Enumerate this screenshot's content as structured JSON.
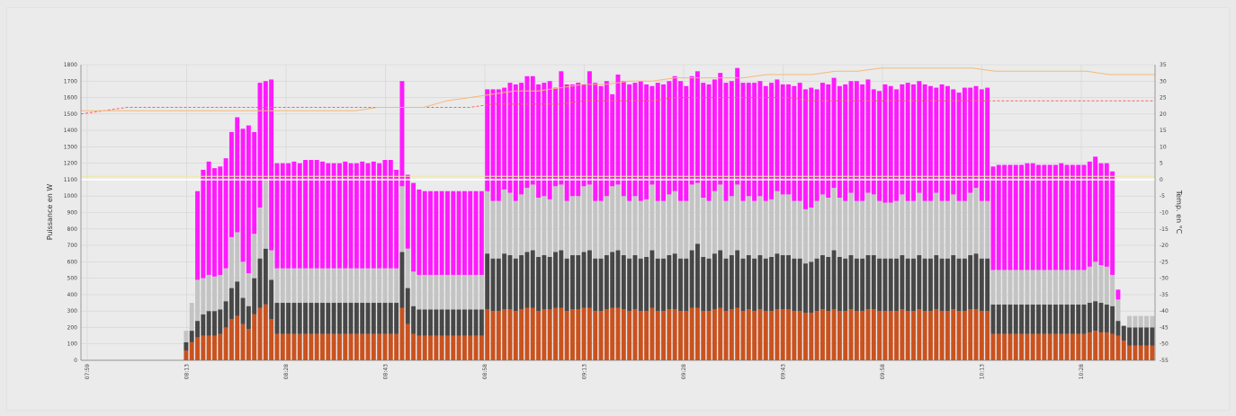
{
  "chart_data": {
    "type": "bar",
    "stacked": true,
    "ylabel": "Puissance en W",
    "y2label": "Temp. en °C",
    "ylim": [
      0,
      1800
    ],
    "y2lim": [
      -55,
      35
    ],
    "grid": true,
    "legend": "none",
    "yticks": [
      "0",
      "100",
      "200",
      "300",
      "400",
      "500",
      "600",
      "700",
      "800",
      "900",
      "1000",
      "1100",
      "1200",
      "1300",
      "1400",
      "1500",
      "1600",
      "1700",
      "1800"
    ],
    "y2ticks": [
      "-55",
      "-50",
      "-45",
      "-40",
      "-35",
      "-30",
      "-25",
      "-20",
      "-15",
      "-10",
      "-5",
      "0",
      "5",
      "10",
      "15",
      "20",
      "25",
      "30",
      "35"
    ],
    "xticks": [
      "07:59",
      "08:13",
      "08:28",
      "08:43",
      "08:58",
      "09:13",
      "09:28",
      "09:43",
      "09:58",
      "10:13",
      "10:28"
    ],
    "n_slots": 189,
    "series": [
      {
        "color": "#c9521f",
        "values": [
          0,
          0,
          0,
          0,
          0,
          0,
          0,
          0,
          0,
          0,
          0,
          0,
          0,
          0,
          0,
          0,
          0,
          0,
          60,
          110,
          140,
          150,
          150,
          150,
          160,
          200,
          250,
          270,
          220,
          190,
          280,
          320,
          340,
          250,
          160,
          160,
          160,
          160,
          160,
          160,
          160,
          160,
          160,
          160,
          160,
          160,
          160,
          160,
          160,
          160,
          160,
          160,
          160,
          160,
          160,
          160,
          320,
          220,
          160,
          150,
          150,
          150,
          150,
          150,
          150,
          150,
          150,
          150,
          150,
          150,
          150,
          310,
          300,
          300,
          310,
          310,
          300,
          310,
          320,
          320,
          300,
          310,
          310,
          320,
          320,
          300,
          310,
          310,
          320,
          320,
          300,
          300,
          310,
          320,
          320,
          310,
          300,
          310,
          300,
          300,
          320,
          300,
          300,
          310,
          310,
          300,
          300,
          320,
          320,
          300,
          300,
          310,
          320,
          300,
          310,
          320,
          300,
          310,
          300,
          310,
          300,
          300,
          310,
          310,
          310,
          300,
          300,
          290,
          290,
          300,
          310,
          300,
          310,
          300,
          300,
          310,
          300,
          300,
          310,
          310,
          300,
          300,
          300,
          300,
          310,
          300,
          300,
          310,
          300,
          300,
          310,
          300,
          300,
          310,
          300,
          300,
          310,
          310,
          300,
          300,
          160,
          160,
          160,
          160,
          160,
          160,
          160,
          160,
          160,
          160,
          160,
          160,
          160,
          160,
          160,
          160,
          160,
          170,
          180,
          170,
          170,
          160,
          150,
          120,
          90,
          90,
          90,
          90,
          90,
          90,
          90,
          90,
          90,
          90,
          90,
          90,
          90
        ]
      },
      {
        "color": "#474747",
        "values": [
          0,
          0,
          0,
          0,
          0,
          0,
          0,
          0,
          0,
          0,
          0,
          0,
          0,
          0,
          0,
          0,
          0,
          0,
          50,
          70,
          100,
          130,
          150,
          150,
          150,
          160,
          190,
          210,
          160,
          140,
          220,
          300,
          340,
          240,
          190,
          190,
          190,
          190,
          190,
          190,
          190,
          190,
          190,
          190,
          190,
          190,
          190,
          190,
          190,
          190,
          190,
          190,
          190,
          190,
          190,
          190,
          340,
          220,
          170,
          160,
          160,
          160,
          160,
          160,
          160,
          160,
          160,
          160,
          160,
          160,
          160,
          340,
          320,
          320,
          340,
          330,
          320,
          330,
          340,
          350,
          330,
          330,
          320,
          340,
          350,
          320,
          330,
          330,
          340,
          350,
          320,
          320,
          330,
          340,
          350,
          330,
          320,
          330,
          320,
          330,
          350,
          320,
          320,
          330,
          340,
          320,
          320,
          350,
          390,
          330,
          320,
          340,
          350,
          320,
          330,
          350,
          320,
          330,
          320,
          330,
          320,
          330,
          340,
          330,
          330,
          320,
          320,
          300,
          310,
          320,
          330,
          330,
          360,
          330,
          320,
          330,
          320,
          320,
          330,
          330,
          320,
          320,
          320,
          320,
          330,
          320,
          320,
          330,
          320,
          320,
          330,
          320,
          320,
          330,
          320,
          320,
          330,
          340,
          320,
          320,
          180,
          180,
          180,
          180,
          180,
          180,
          180,
          180,
          180,
          180,
          180,
          180,
          180,
          180,
          180,
          180,
          180,
          180,
          180,
          180,
          170,
          170,
          90,
          90,
          110,
          110,
          110,
          110,
          110,
          110,
          110,
          100,
          100,
          100,
          100,
          100,
          100
        ]
      },
      {
        "color": "#c4c4c4",
        "values": [
          0,
          0,
          0,
          0,
          0,
          0,
          0,
          0,
          0,
          0,
          0,
          0,
          0,
          0,
          0,
          0,
          0,
          0,
          70,
          170,
          250,
          220,
          220,
          210,
          210,
          200,
          310,
          300,
          220,
          200,
          270,
          310,
          420,
          180,
          210,
          210,
          210,
          210,
          210,
          210,
          210,
          210,
          210,
          210,
          210,
          210,
          210,
          210,
          210,
          210,
          210,
          210,
          210,
          210,
          210,
          210,
          400,
          240,
          210,
          210,
          210,
          210,
          210,
          210,
          210,
          210,
          210,
          210,
          210,
          210,
          210,
          380,
          350,
          350,
          390,
          380,
          350,
          370,
          390,
          400,
          360,
          360,
          350,
          400,
          400,
          350,
          360,
          360,
          400,
          400,
          350,
          350,
          360,
          400,
          400,
          360,
          350,
          360,
          350,
          350,
          400,
          350,
          350,
          370,
          380,
          350,
          350,
          400,
          370,
          360,
          350,
          380,
          400,
          350,
          360,
          400,
          350,
          360,
          350,
          360,
          350,
          350,
          380,
          370,
          370,
          350,
          350,
          330,
          330,
          350,
          370,
          360,
          380,
          360,
          350,
          380,
          350,
          350,
          380,
          370,
          350,
          340,
          340,
          350,
          370,
          350,
          350,
          380,
          350,
          350,
          380,
          350,
          350,
          370,
          350,
          350,
          380,
          400,
          350,
          350,
          210,
          210,
          210,
          210,
          210,
          210,
          210,
          210,
          210,
          210,
          210,
          210,
          210,
          210,
          210,
          210,
          210,
          220,
          240,
          230,
          230,
          190,
          130,
          0,
          70,
          70,
          70,
          70,
          70,
          70,
          70,
          60,
          60,
          60,
          60,
          60,
          60
        ]
      },
      {
        "color": "#ff1aff",
        "values": [
          0,
          0,
          0,
          0,
          0,
          0,
          0,
          0,
          0,
          0,
          0,
          0,
          0,
          0,
          0,
          0,
          0,
          0,
          0,
          0,
          540,
          660,
          690,
          660,
          660,
          670,
          640,
          700,
          810,
          900,
          620,
          760,
          600,
          1040,
          640,
          640,
          640,
          650,
          640,
          660,
          660,
          660,
          650,
          640,
          640,
          640,
          650,
          640,
          640,
          650,
          640,
          650,
          640,
          660,
          660,
          600,
          640,
          450,
          540,
          520,
          510,
          510,
          510,
          510,
          510,
          510,
          510,
          510,
          510,
          510,
          510,
          620,
          680,
          680,
          620,
          670,
          710,
          680,
          680,
          660,
          690,
          690,
          720,
          600,
          690,
          710,
          680,
          690,
          620,
          690,
          720,
          700,
          700,
          560,
          670,
          700,
          710,
          690,
          730,
          700,
          600,
          720,
          710,
          690,
          700,
          730,
          700,
          660,
          680,
          700,
          710,
          680,
          680,
          720,
          700,
          710,
          720,
          690,
          720,
          700,
          700,
          710,
          680,
          670,
          670,
          700,
          720,
          730,
          730,
          680,
          680,
          690,
          670,
          680,
          710,
          680,
          730,
          710,
          690,
          640,
          670,
          720,
          710,
          680,
          670,
          720,
          710,
          680,
          710,
          700,
          640,
          710,
          700,
          640,
          660,
          690,
          640,
          620,
          680,
          690,
          630,
          640,
          640,
          640,
          640,
          640,
          650,
          650,
          640,
          640,
          640,
          640,
          650,
          640,
          640,
          640,
          640,
          640,
          640,
          620,
          630,
          630,
          60,
          0,
          0,
          0,
          0,
          0,
          0,
          0,
          0,
          0,
          0,
          0,
          0,
          0,
          0,
          0
        ]
      }
    ],
    "temperature_series": [
      {
        "color": "#ff6060",
        "style": "dashed",
        "values": [
          20,
          21,
          22,
          22,
          22,
          22,
          22,
          22,
          22,
          22,
          22,
          22,
          22,
          22,
          22,
          22,
          22,
          22,
          23,
          23,
          23,
          23,
          24,
          24,
          24,
          24,
          25,
          25,
          25,
          25,
          25,
          25,
          24,
          24,
          24,
          24,
          24,
          24,
          24,
          24,
          24,
          24,
          24,
          24,
          24,
          24,
          24,
          24
        ]
      },
      {
        "color": "#f5b87a",
        "style": "solid",
        "values": [
          21,
          21,
          21,
          21,
          21,
          21,
          21,
          21,
          21,
          21,
          21,
          21,
          21,
          22,
          22,
          22,
          24,
          25,
          26,
          27,
          27,
          28,
          29,
          29,
          30,
          30,
          31,
          31,
          31,
          31,
          32,
          32,
          32,
          33,
          33,
          34,
          34,
          34,
          34,
          34,
          33,
          33,
          33,
          33,
          33,
          32,
          32,
          32
        ]
      },
      {
        "color": "#f0e6a0",
        "style": "solid",
        "values": [
          1,
          1,
          1,
          1,
          1,
          1,
          1,
          1,
          1,
          1,
          1,
          1,
          1,
          1,
          1,
          1,
          1,
          1,
          1,
          1,
          1,
          1,
          1,
          1,
          1,
          1,
          1,
          1,
          1,
          1,
          1,
          1,
          1,
          1,
          1,
          1,
          1,
          1,
          1,
          1,
          1,
          1,
          1,
          1,
          1,
          1,
          1,
          1
        ]
      },
      {
        "color": "#ffffff",
        "style": "solid",
        "values": [
          0,
          0,
          0,
          0,
          0,
          0,
          0,
          0,
          0,
          0,
          0,
          0,
          0,
          0,
          0,
          0,
          0,
          0,
          0,
          0,
          0,
          0,
          0,
          0,
          0,
          0,
          0,
          0,
          0,
          0,
          0,
          0,
          0,
          0,
          0,
          0,
          0,
          0,
          0,
          0,
          0,
          0,
          0,
          0,
          0,
          0,
          0,
          0
        ]
      }
    ]
  }
}
